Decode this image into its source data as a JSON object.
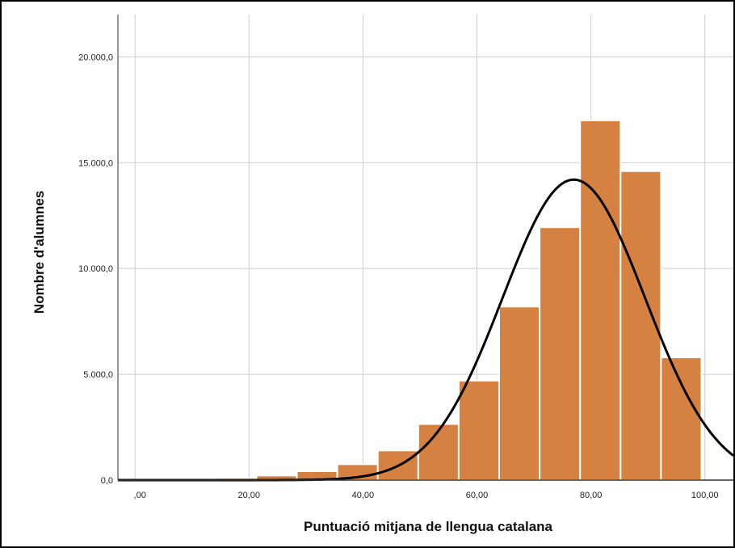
{
  "chart_data": {
    "type": "bar",
    "title": "",
    "xlabel": "Puntuació mitjana de llengua catalana",
    "ylabel": "Nombre d'alumnes",
    "xlim": [
      -3,
      105
    ],
    "ylim": [
      0,
      22000
    ],
    "grid": true,
    "x_ticks": [
      0,
      20,
      40,
      60,
      80,
      100
    ],
    "x_tick_labels": [
      ",00",
      "20,00",
      "40,00",
      "60,00",
      "80,00",
      "100,00"
    ],
    "y_ticks": [
      0,
      5000,
      10000,
      15000,
      20000
    ],
    "y_tick_labels": [
      "0,0",
      "5.000,0",
      "10.000,0",
      "15.000,0",
      "20.000,0"
    ],
    "bins": [
      {
        "x0": 0.0,
        "x1": 7.1,
        "value": 5
      },
      {
        "x0": 7.1,
        "x1": 14.2,
        "value": 20
      },
      {
        "x0": 14.2,
        "x1": 21.3,
        "value": 100
      },
      {
        "x0": 21.3,
        "x1": 28.4,
        "value": 220
      },
      {
        "x0": 28.4,
        "x1": 35.5,
        "value": 420
      },
      {
        "x0": 35.5,
        "x1": 42.6,
        "value": 750
      },
      {
        "x0": 42.6,
        "x1": 49.7,
        "value": 1400
      },
      {
        "x0": 49.7,
        "x1": 56.8,
        "value": 2650
      },
      {
        "x0": 56.8,
        "x1": 63.9,
        "value": 4700
      },
      {
        "x0": 63.9,
        "x1": 71.0,
        "value": 8200
      },
      {
        "x0": 71.0,
        "x1": 78.1,
        "value": 11950
      },
      {
        "x0": 78.1,
        "x1": 85.2,
        "value": 17000
      },
      {
        "x0": 85.2,
        "x1": 92.3,
        "value": 14600
      },
      {
        "x0": 92.3,
        "x1": 99.4,
        "value": 5800
      }
    ],
    "normal_curve": {
      "mean": 77,
      "sd": 12.5,
      "peak": 14200
    },
    "colors": {
      "bar": "#d58142",
      "bar_edge": "#ffffff",
      "curve": "#000000",
      "grid": "#cccccc"
    }
  }
}
